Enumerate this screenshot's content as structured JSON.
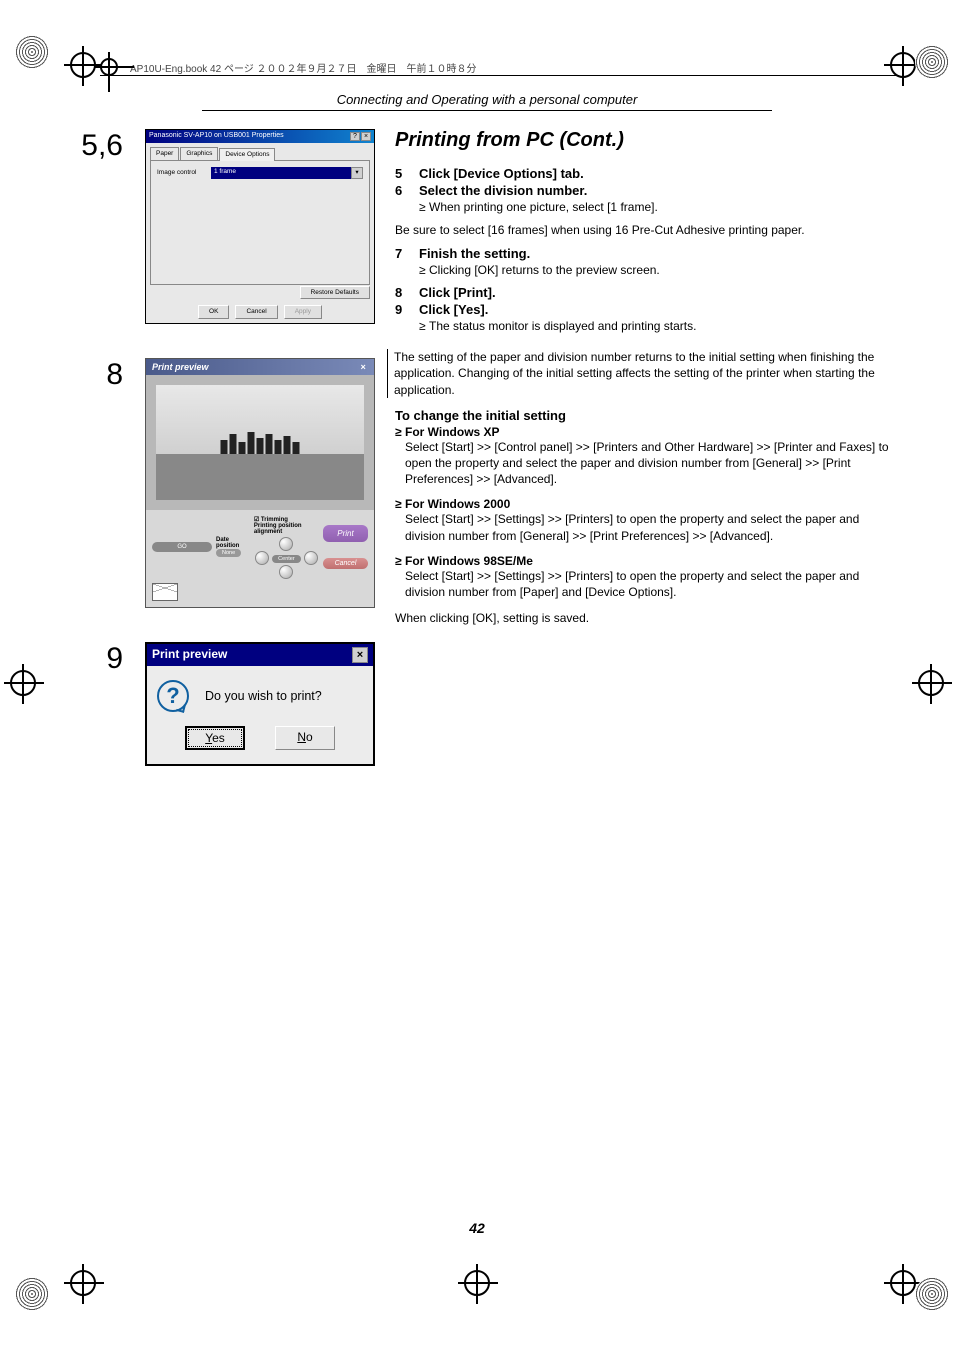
{
  "header": {
    "book_info": "AP10U-Eng.book  42 ページ  ２００２年９月２７日　金曜日　午前１０時８分"
  },
  "section_header": "Connecting and Operating with a personal computer",
  "title": "Printing from PC (Cont.)",
  "page_number": "42",
  "step_labels": {
    "fig56": "5,6",
    "fig8": "8",
    "fig9": "9"
  },
  "fig56": {
    "window_title": "Panasonic SV-AP10 on USB001 Properties",
    "tabs": {
      "paper": "Paper",
      "graphics": "Graphics",
      "device_options": "Device Options"
    },
    "field_label": "Image control",
    "field_value": "1 frame",
    "restore_btn": "Restore Defaults",
    "ok": "OK",
    "cancel": "Cancel",
    "apply": "Apply"
  },
  "fig8": {
    "title": "Print preview",
    "go": "GO",
    "date_position": "Date position",
    "none": "None",
    "trimming": "Trimming",
    "ppa": "Printing position alignment",
    "center": "Center",
    "print": "Print",
    "cancel": "Cancel"
  },
  "fig9": {
    "title": "Print preview",
    "message": "Do you wish to print?",
    "yes_pre": "Y",
    "yes_post": "es",
    "no_pre": "N",
    "no_post": "o"
  },
  "steps": {
    "s5": "Click [Device Options] tab.",
    "s6": "Select the division number.",
    "s6_sub": "When printing one picture, select [1 frame].",
    "note1": "Be sure to select [16 frames] when using 16 Pre-Cut Adhesive printing paper.",
    "s7": "Finish the setting.",
    "s7_sub": "Clicking [OK] returns to the preview screen.",
    "s8": "Click [Print].",
    "s9": "Click [Yes].",
    "s9_sub": "The status monitor is displayed and printing starts.",
    "note2": "The setting of the paper and division number returns to the initial setting when finishing the application. Changing of the initial setting affects the setting of the printer when starting the application."
  },
  "change": {
    "heading": "To change the initial setting",
    "xp_head": "For Windows XP",
    "xp_body": "Select [Start] >> [Control panel] >> [Printers and Other Hardware] >> [Printer and Faxes] to open the property and select the paper and division number from [General] >> [Print Preferences] >> [Advanced].",
    "w2k_head": "For Windows 2000",
    "w2k_body": "Select [Start] >> [Settings] >> [Printers] to open the property and select the paper and division number from [General] >> [Print Preferences] >> [Advanced].",
    "w98_head": "For Windows 98SE/Me",
    "w98_body": "Select [Start] >> [Settings] >> [Printers] to open the property and select the paper and division number from [Paper] and [Device Options].",
    "final": "When clicking [OK], setting is saved."
  },
  "layout": {
    "page_num_top": 1220
  }
}
